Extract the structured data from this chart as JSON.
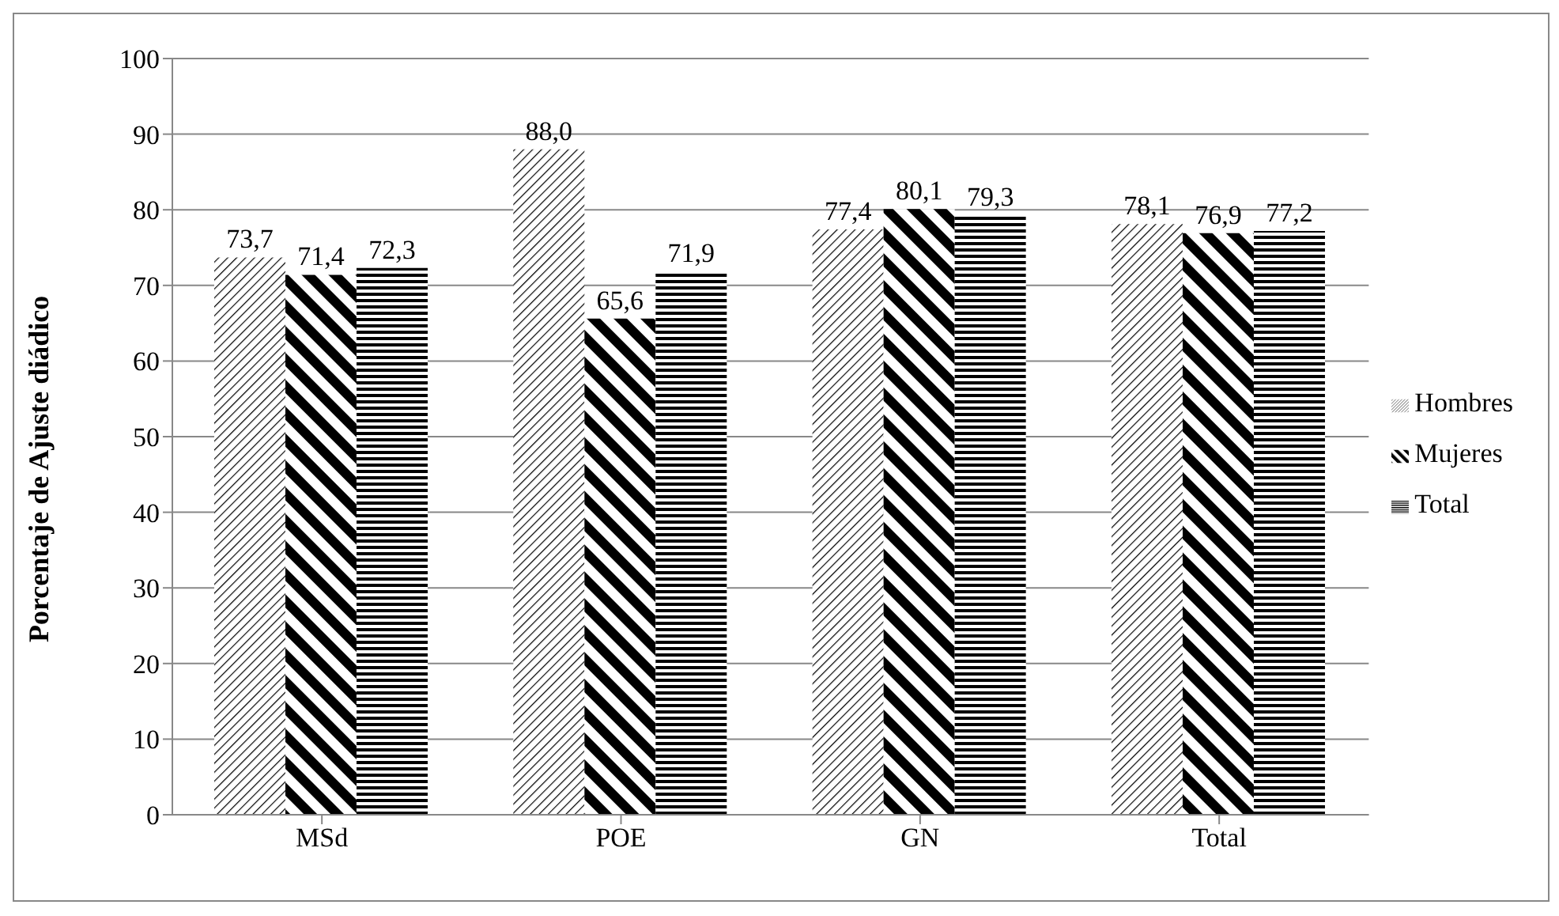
{
  "chart_data": {
    "type": "bar",
    "ylabel": "Porcentaje de Ajuste diádico",
    "categories": [
      "MSd",
      "POE",
      "GN",
      "Total"
    ],
    "series": [
      {
        "name": "Hombres",
        "color": "#000000",
        "values": [
          73.7,
          88.0,
          77.4,
          78.1
        ],
        "value_labels": [
          "73,7",
          "88,0",
          "77,4",
          "78,1"
        ]
      },
      {
        "name": "Mujeres",
        "color": "#000000",
        "values": [
          71.4,
          65.6,
          80.1,
          76.9
        ],
        "value_labels": [
          "71,4",
          "65,6",
          "80,1",
          "76,9"
        ]
      },
      {
        "name": "Total",
        "color": "#000000",
        "values": [
          72.3,
          71.9,
          79.3,
          77.2
        ],
        "value_labels": [
          "72,3",
          "71,9",
          "79,3",
          "77,2"
        ]
      }
    ],
    "ylim": [
      0,
      100
    ],
    "yticks": [
      0,
      10,
      20,
      30,
      40,
      50,
      60,
      70,
      80,
      90,
      100
    ],
    "grid": "y",
    "legend": "right"
  }
}
